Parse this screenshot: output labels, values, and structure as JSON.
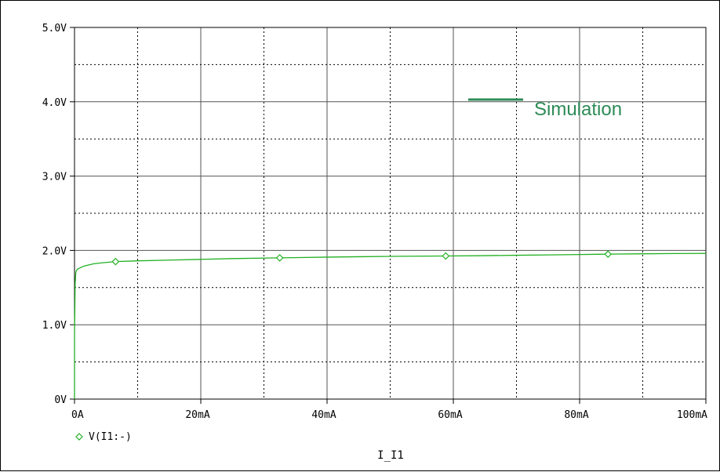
{
  "chart_data": {
    "type": "line",
    "xlabel": "I_I1",
    "ylabel": "",
    "title": "",
    "xlim": [
      0,
      100
    ],
    "ylim": [
      0,
      5
    ],
    "x_unit": "mA",
    "y_unit": "V",
    "x_ticks": [
      0,
      20,
      40,
      60,
      80,
      100
    ],
    "x_tick_labels": [
      "0A",
      "20mA",
      "40mA",
      "60mA",
      "80mA",
      "100mA"
    ],
    "y_ticks": [
      0,
      1,
      2,
      3,
      4,
      5
    ],
    "y_tick_labels": [
      "0V",
      "1.0V",
      "2.0V",
      "3.0V",
      "4.0V",
      "5.0V"
    ],
    "grid": true,
    "legend": {
      "placement": "bottom-left",
      "entries": [
        "V(I1:-)"
      ]
    },
    "annotation": {
      "text": "Simulation",
      "color": "#2e8b57"
    },
    "series": [
      {
        "name": "V(I1:-)",
        "color": "#22b022",
        "x": [
          0,
          0.05,
          0.1,
          0.2,
          0.3,
          0.5,
          1,
          1.5,
          2,
          3,
          4,
          6.5,
          10,
          15,
          20,
          25,
          32.5,
          40,
          45,
          50,
          58.8,
          65,
          70,
          75,
          80,
          84.5,
          90,
          95,
          100
        ],
        "y": [
          0.86,
          1.2,
          1.55,
          1.7,
          1.73,
          1.75,
          1.77,
          1.79,
          1.8,
          1.82,
          1.83,
          1.85,
          1.86,
          1.87,
          1.88,
          1.89,
          1.9,
          1.91,
          1.915,
          1.92,
          1.925,
          1.93,
          1.935,
          1.94,
          1.945,
          1.95,
          1.955,
          1.958,
          1.96
        ],
        "markers_x": [
          6.5,
          32.5,
          58.8,
          84.5
        ]
      }
    ]
  }
}
